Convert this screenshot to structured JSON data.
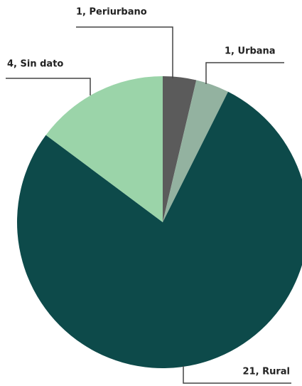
{
  "chart_data": {
    "type": "pie",
    "categories": [
      "1, Periurbano",
      "1, Urbana",
      "21, Rural",
      "4, Sin dato"
    ],
    "values": [
      1,
      1,
      21,
      4
    ],
    "colors": [
      "#5b5b5b",
      "#93b2a0",
      "#0d4a4a",
      "#9bd4a9"
    ]
  }
}
